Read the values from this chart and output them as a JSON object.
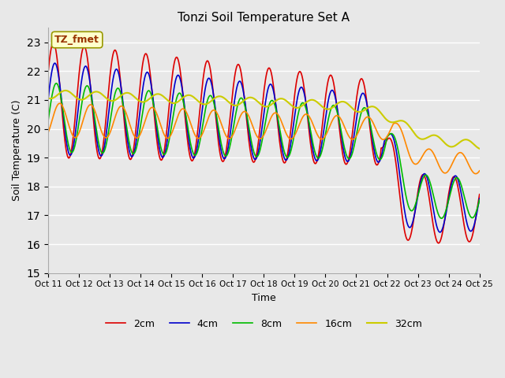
{
  "title": "Tonzi Soil Temperature Set A",
  "xlabel": "Time",
  "ylabel": "Soil Temperature (C)",
  "ylim": [
    15.0,
    23.5
  ],
  "yticks": [
    15.0,
    16.0,
    17.0,
    18.0,
    19.0,
    20.0,
    21.0,
    22.0,
    23.0
  ],
  "x_labels": [
    "Oct 11",
    "Oct 12",
    "Oct 13",
    "Oct 14",
    "Oct 15",
    "Oct 16",
    "Oct 17",
    "Oct 18",
    "Oct 19",
    "Oct 20",
    "Oct 21",
    "Oct 22",
    "Oct 23",
    "Oct 24",
    "Oct 25"
  ],
  "line_colors": [
    "#dd0000",
    "#0000cc",
    "#00bb00",
    "#ff8800",
    "#cccc00"
  ],
  "line_labels": [
    "2cm",
    "4cm",
    "8cm",
    "16cm",
    "32cm"
  ],
  "annotation_text": "TZ_fmet",
  "annotation_bg": "#ffffcc",
  "annotation_edge": "#993300",
  "plot_bg": "#e8e8e8",
  "fig_bg": "#e8e8e8"
}
